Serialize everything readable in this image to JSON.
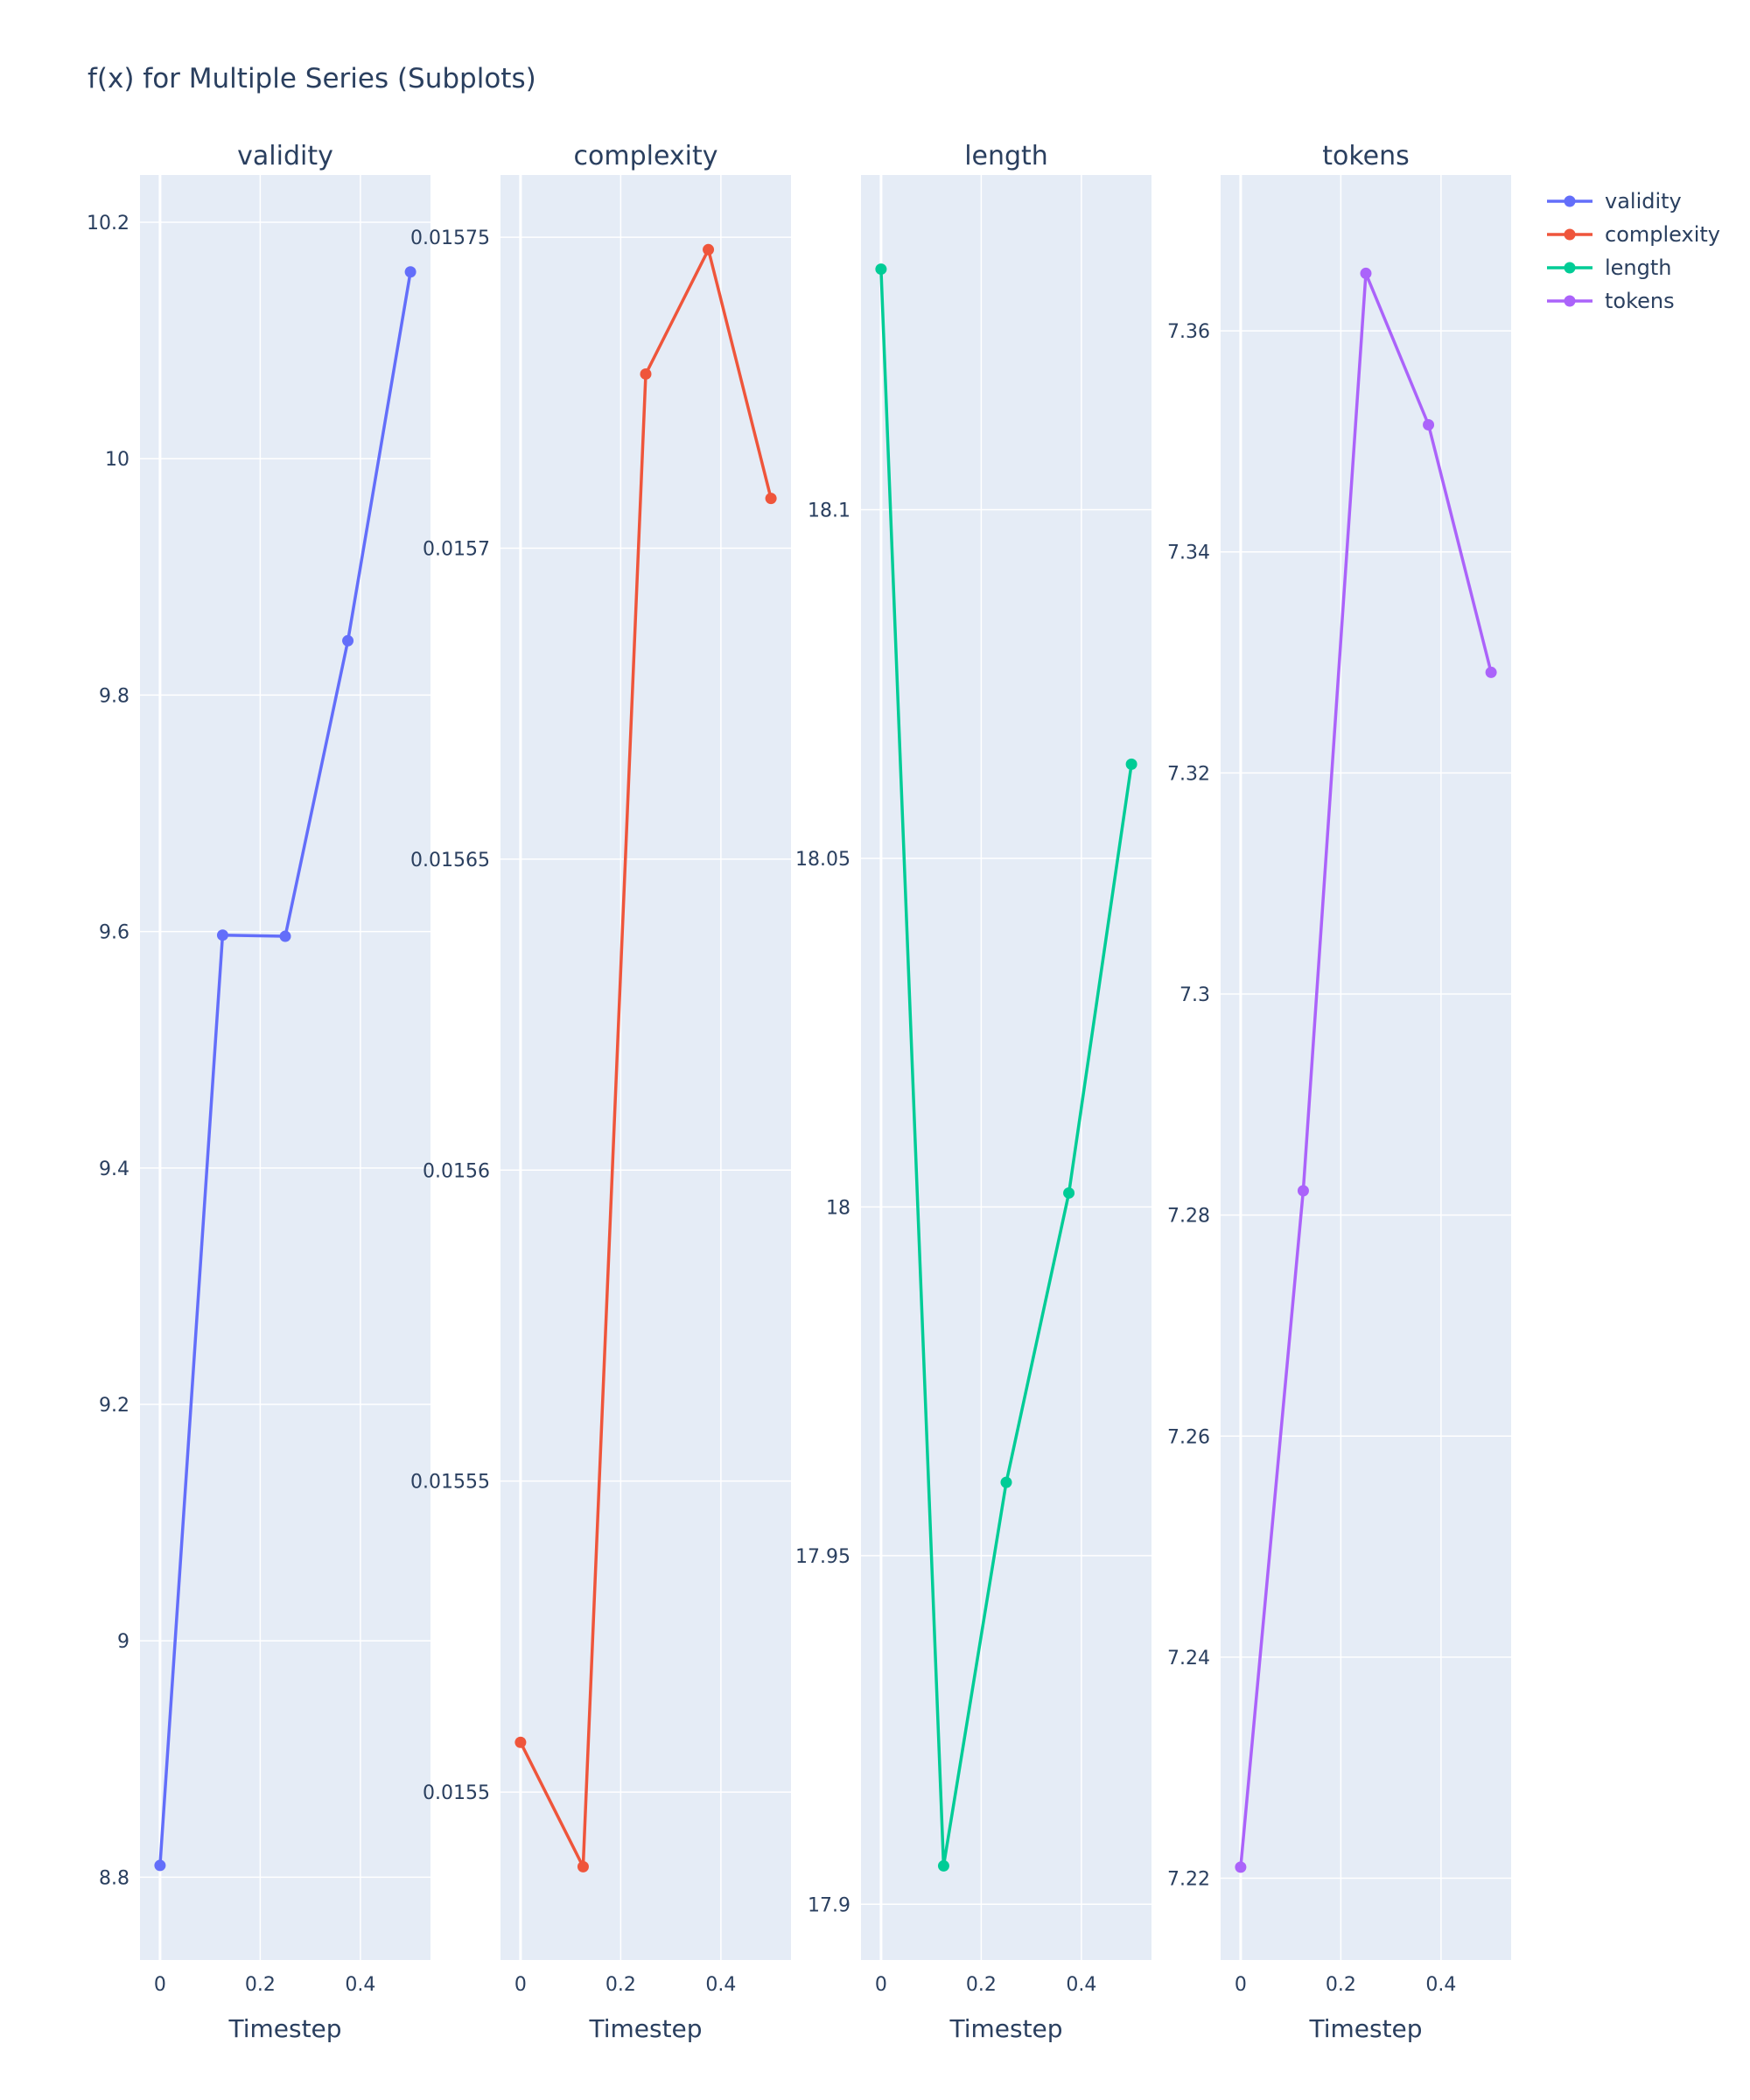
{
  "title": "f(x) for Multiple Series (Subplots)",
  "chart_data": [
    {
      "type": "line",
      "title": "validity",
      "xlabel": "Timestep",
      "ylabel": "",
      "x": [
        0,
        0.125,
        0.25,
        0.375,
        0.5
      ],
      "series": [
        {
          "name": "validity",
          "color": "#636efa",
          "values": [
            8.81,
            9.597,
            9.596,
            9.846,
            10.158
          ]
        }
      ],
      "xlim": [
        -0.04,
        0.54
      ],
      "ylim": [
        8.73,
        10.24
      ],
      "xticks": [
        0,
        0.2,
        0.4
      ],
      "xtick_labels": [
        "0",
        "0.2",
        "0.4"
      ],
      "yticks": [
        8.8,
        9,
        9.2,
        9.4,
        9.6,
        9.8,
        10,
        10.2
      ],
      "ytick_labels": [
        "8.8",
        "9",
        "9.2",
        "9.4",
        "9.6",
        "9.8",
        "10",
        "10.2"
      ]
    },
    {
      "type": "line",
      "title": "complexity",
      "xlabel": "Timestep",
      "ylabel": "",
      "x": [
        0,
        0.125,
        0.25,
        0.375,
        0.5
      ],
      "series": [
        {
          "name": "complexity",
          "color": "#ef553b",
          "values": [
            0.015508,
            0.015488,
            0.015728,
            0.015748,
            0.015708
          ]
        }
      ],
      "xlim": [
        -0.04,
        0.54
      ],
      "ylim": [
        0.015473,
        0.01576
      ],
      "xticks": [
        0,
        0.2,
        0.4
      ],
      "xtick_labels": [
        "0",
        "0.2",
        "0.4"
      ],
      "yticks": [
        0.0155,
        0.01555,
        0.0156,
        0.01565,
        0.0157,
        0.01575
      ],
      "ytick_labels": [
        "0.0155",
        "0.01555",
        "0.0156",
        "0.01565",
        "0.0157",
        "0.01575"
      ]
    },
    {
      "type": "line",
      "title": "length",
      "xlabel": "Timestep",
      "ylabel": "",
      "x": [
        0,
        0.125,
        0.25,
        0.375,
        0.5
      ],
      "series": [
        {
          "name": "length",
          "color": "#00cc96",
          "values": [
            18.1345,
            17.9055,
            17.9605,
            18.002,
            18.0635
          ]
        }
      ],
      "xlim": [
        -0.04,
        0.54
      ],
      "ylim": [
        17.892,
        18.148
      ],
      "xticks": [
        0,
        0.2,
        0.4
      ],
      "xtick_labels": [
        "0",
        "0.2",
        "0.4"
      ],
      "yticks": [
        17.9,
        17.95,
        18,
        18.05,
        18.1
      ],
      "ytick_labels": [
        "17.9",
        "17.95",
        "18",
        "18.05",
        "18.1"
      ]
    },
    {
      "type": "line",
      "title": "tokens",
      "xlabel": "Timestep",
      "ylabel": "",
      "x": [
        0,
        0.125,
        0.25,
        0.375,
        0.5
      ],
      "series": [
        {
          "name": "tokens",
          "color": "#ab63fa",
          "values": [
            7.221,
            7.2822,
            7.3652,
            7.3515,
            7.3291
          ]
        }
      ],
      "xlim": [
        -0.04,
        0.54
      ],
      "ylim": [
        7.2126,
        7.3741
      ],
      "xticks": [
        0,
        0.2,
        0.4
      ],
      "xtick_labels": [
        "0",
        "0.2",
        "0.4"
      ],
      "yticks": [
        7.22,
        7.24,
        7.26,
        7.28,
        7.3,
        7.32,
        7.34,
        7.36
      ],
      "ytick_labels": [
        "7.22",
        "7.24",
        "7.26",
        "7.28",
        "7.3",
        "7.32",
        "7.34",
        "7.36"
      ]
    }
  ],
  "legend": {
    "placement": "top-right",
    "items": [
      {
        "label": "validity",
        "color": "#636efa"
      },
      {
        "label": "complexity",
        "color": "#ef553b"
      },
      {
        "label": "length",
        "color": "#00cc96"
      },
      {
        "label": "tokens",
        "color": "#ab63fa"
      }
    ]
  },
  "colors": {
    "plot_background": "#e5ecf6",
    "gridline": "#ffffff",
    "text": "#2a3f5f"
  }
}
